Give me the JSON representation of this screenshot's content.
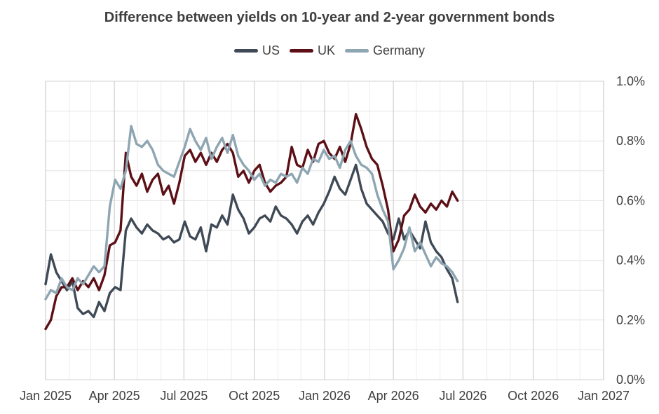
{
  "chart_data": {
    "type": "line",
    "title": "Difference between yields on 10-year and 2-year government bonds",
    "xlabel": "",
    "ylabel": "",
    "x_range": [
      "2025-01-01",
      "2027-01-01"
    ],
    "ylim": [
      0.0,
      1.0
    ],
    "x_ticks": [
      "Jan 2025",
      "Apr 2025",
      "Jul 2025",
      "Oct 2025",
      "Jan 2026",
      "Apr 2026",
      "Jul 2026",
      "Oct 2026",
      "Jan 2027"
    ],
    "y_ticks": [
      "0.0%",
      "0.2%",
      "0.4%",
      "0.6%",
      "0.8%",
      "1.0%"
    ],
    "y_axis_position": "right",
    "grid": true,
    "legend_position": "top-center",
    "series": [
      {
        "name": "US",
        "color": "#3f4a56",
        "points": [
          [
            "2025-01-01",
            0.32
          ],
          [
            "2025-01-08",
            0.42
          ],
          [
            "2025-01-15",
            0.36
          ],
          [
            "2025-01-22",
            0.33
          ],
          [
            "2025-01-29",
            0.3
          ],
          [
            "2025-02-05",
            0.33
          ],
          [
            "2025-02-12",
            0.24
          ],
          [
            "2025-02-19",
            0.22
          ],
          [
            "2025-02-26",
            0.23
          ],
          [
            "2025-03-05",
            0.21
          ],
          [
            "2025-03-12",
            0.26
          ],
          [
            "2025-03-19",
            0.23
          ],
          [
            "2025-03-26",
            0.29
          ],
          [
            "2025-04-02",
            0.31
          ],
          [
            "2025-04-09",
            0.3
          ],
          [
            "2025-04-16",
            0.5
          ],
          [
            "2025-04-23",
            0.54
          ],
          [
            "2025-04-30",
            0.51
          ],
          [
            "2025-05-07",
            0.49
          ],
          [
            "2025-05-14",
            0.52
          ],
          [
            "2025-05-21",
            0.5
          ],
          [
            "2025-05-28",
            0.49
          ],
          [
            "2025-06-04",
            0.47
          ],
          [
            "2025-06-11",
            0.48
          ],
          [
            "2025-06-18",
            0.46
          ],
          [
            "2025-06-25",
            0.47
          ],
          [
            "2025-07-02",
            0.53
          ],
          [
            "2025-07-09",
            0.48
          ],
          [
            "2025-07-16",
            0.47
          ],
          [
            "2025-07-23",
            0.51
          ],
          [
            "2025-07-30",
            0.43
          ],
          [
            "2025-08-06",
            0.52
          ],
          [
            "2025-08-13",
            0.51
          ],
          [
            "2025-08-20",
            0.55
          ],
          [
            "2025-08-27",
            0.52
          ],
          [
            "2025-09-03",
            0.62
          ],
          [
            "2025-09-10",
            0.57
          ],
          [
            "2025-09-17",
            0.54
          ],
          [
            "2025-09-24",
            0.49
          ],
          [
            "2025-10-01",
            0.51
          ],
          [
            "2025-10-08",
            0.54
          ],
          [
            "2025-10-15",
            0.55
          ],
          [
            "2025-10-22",
            0.53
          ],
          [
            "2025-10-29",
            0.58
          ],
          [
            "2025-11-05",
            0.55
          ],
          [
            "2025-11-12",
            0.54
          ],
          [
            "2025-11-19",
            0.52
          ],
          [
            "2025-11-26",
            0.49
          ],
          [
            "2025-12-03",
            0.53
          ],
          [
            "2025-12-10",
            0.55
          ],
          [
            "2025-12-17",
            0.52
          ],
          [
            "2025-12-24",
            0.56
          ],
          [
            "2025-12-31",
            0.59
          ],
          [
            "2026-01-07",
            0.63
          ],
          [
            "2026-01-14",
            0.68
          ],
          [
            "2026-01-21",
            0.64
          ],
          [
            "2026-01-28",
            0.62
          ],
          [
            "2026-02-04",
            0.67
          ],
          [
            "2026-02-11",
            0.72
          ],
          [
            "2026-02-18",
            0.64
          ],
          [
            "2026-02-25",
            0.59
          ],
          [
            "2026-03-04",
            0.57
          ],
          [
            "2026-03-11",
            0.55
          ],
          [
            "2026-03-18",
            0.53
          ],
          [
            "2026-03-25",
            0.49
          ],
          [
            "2026-04-01",
            0.47
          ],
          [
            "2026-04-08",
            0.54
          ],
          [
            "2026-04-15",
            0.47
          ],
          [
            "2026-04-22",
            0.5
          ],
          [
            "2026-04-29",
            0.47
          ],
          [
            "2026-05-06",
            0.44
          ],
          [
            "2026-05-13",
            0.53
          ],
          [
            "2026-05-20",
            0.46
          ],
          [
            "2026-05-27",
            0.43
          ],
          [
            "2026-06-03",
            0.41
          ],
          [
            "2026-06-10",
            0.37
          ],
          [
            "2026-06-17",
            0.34
          ],
          [
            "2026-06-24",
            0.26
          ]
        ]
      },
      {
        "name": "UK",
        "color": "#5c1016",
        "points": [
          [
            "2025-01-01",
            0.17
          ],
          [
            "2025-01-08",
            0.2
          ],
          [
            "2025-01-15",
            0.28
          ],
          [
            "2025-01-22",
            0.31
          ],
          [
            "2025-01-29",
            0.31
          ],
          [
            "2025-02-05",
            0.34
          ],
          [
            "2025-02-12",
            0.3
          ],
          [
            "2025-02-19",
            0.33
          ],
          [
            "2025-02-26",
            0.31
          ],
          [
            "2025-03-05",
            0.34
          ],
          [
            "2025-03-12",
            0.3
          ],
          [
            "2025-03-19",
            0.35
          ],
          [
            "2025-03-26",
            0.45
          ],
          [
            "2025-04-02",
            0.46
          ],
          [
            "2025-04-09",
            0.5
          ],
          [
            "2025-04-16",
            0.76
          ],
          [
            "2025-04-23",
            0.68
          ],
          [
            "2025-04-30",
            0.65
          ],
          [
            "2025-05-07",
            0.69
          ],
          [
            "2025-05-14",
            0.63
          ],
          [
            "2025-05-21",
            0.67
          ],
          [
            "2025-05-28",
            0.69
          ],
          [
            "2025-06-04",
            0.62
          ],
          [
            "2025-06-11",
            0.65
          ],
          [
            "2025-06-18",
            0.59
          ],
          [
            "2025-06-25",
            0.66
          ],
          [
            "2025-07-02",
            0.75
          ],
          [
            "2025-07-09",
            0.77
          ],
          [
            "2025-07-16",
            0.73
          ],
          [
            "2025-07-23",
            0.76
          ],
          [
            "2025-07-30",
            0.72
          ],
          [
            "2025-08-06",
            0.76
          ],
          [
            "2025-08-13",
            0.73
          ],
          [
            "2025-08-20",
            0.77
          ],
          [
            "2025-08-27",
            0.79
          ],
          [
            "2025-09-03",
            0.76
          ],
          [
            "2025-09-10",
            0.68
          ],
          [
            "2025-09-17",
            0.7
          ],
          [
            "2025-09-24",
            0.66
          ],
          [
            "2025-10-01",
            0.7
          ],
          [
            "2025-10-08",
            0.72
          ],
          [
            "2025-10-15",
            0.66
          ],
          [
            "2025-10-22",
            0.63
          ],
          [
            "2025-10-29",
            0.65
          ],
          [
            "2025-11-05",
            0.66
          ],
          [
            "2025-11-12",
            0.68
          ],
          [
            "2025-11-19",
            0.78
          ],
          [
            "2025-11-26",
            0.72
          ],
          [
            "2025-12-03",
            0.71
          ],
          [
            "2025-12-10",
            0.77
          ],
          [
            "2025-12-17",
            0.73
          ],
          [
            "2025-12-24",
            0.79
          ],
          [
            "2025-12-31",
            0.8
          ],
          [
            "2026-01-07",
            0.76
          ],
          [
            "2026-01-14",
            0.74
          ],
          [
            "2026-01-21",
            0.78
          ],
          [
            "2026-01-28",
            0.73
          ],
          [
            "2026-02-04",
            0.79
          ],
          [
            "2026-02-11",
            0.89
          ],
          [
            "2026-02-18",
            0.84
          ],
          [
            "2026-02-25",
            0.78
          ],
          [
            "2026-03-04",
            0.74
          ],
          [
            "2026-03-11",
            0.72
          ],
          [
            "2026-03-18",
            0.65
          ],
          [
            "2026-03-25",
            0.57
          ],
          [
            "2026-04-01",
            0.43
          ],
          [
            "2026-04-08",
            0.47
          ],
          [
            "2026-04-15",
            0.55
          ],
          [
            "2026-04-22",
            0.57
          ],
          [
            "2026-04-29",
            0.62
          ],
          [
            "2026-05-06",
            0.58
          ],
          [
            "2026-05-13",
            0.56
          ],
          [
            "2026-05-20",
            0.59
          ],
          [
            "2026-05-27",
            0.57
          ],
          [
            "2026-06-03",
            0.6
          ],
          [
            "2026-06-10",
            0.58
          ],
          [
            "2026-06-17",
            0.63
          ],
          [
            "2026-06-24",
            0.6
          ]
        ]
      },
      {
        "name": "Germany",
        "color": "#8ea5b2",
        "points": [
          [
            "2025-01-01",
            0.27
          ],
          [
            "2025-01-08",
            0.3
          ],
          [
            "2025-01-15",
            0.29
          ],
          [
            "2025-01-22",
            0.34
          ],
          [
            "2025-01-29",
            0.31
          ],
          [
            "2025-02-05",
            0.3
          ],
          [
            "2025-02-12",
            0.34
          ],
          [
            "2025-02-19",
            0.32
          ],
          [
            "2025-02-26",
            0.35
          ],
          [
            "2025-03-05",
            0.38
          ],
          [
            "2025-03-12",
            0.36
          ],
          [
            "2025-03-19",
            0.38
          ],
          [
            "2025-03-26",
            0.58
          ],
          [
            "2025-04-02",
            0.67
          ],
          [
            "2025-04-09",
            0.64
          ],
          [
            "2025-04-16",
            0.7
          ],
          [
            "2025-04-23",
            0.85
          ],
          [
            "2025-04-30",
            0.79
          ],
          [
            "2025-05-07",
            0.78
          ],
          [
            "2025-05-14",
            0.8
          ],
          [
            "2025-05-21",
            0.77
          ],
          [
            "2025-05-28",
            0.72
          ],
          [
            "2025-06-04",
            0.7
          ],
          [
            "2025-06-11",
            0.69
          ],
          [
            "2025-06-18",
            0.68
          ],
          [
            "2025-06-25",
            0.73
          ],
          [
            "2025-07-02",
            0.78
          ],
          [
            "2025-07-09",
            0.84
          ],
          [
            "2025-07-16",
            0.8
          ],
          [
            "2025-07-23",
            0.77
          ],
          [
            "2025-07-30",
            0.81
          ],
          [
            "2025-08-06",
            0.74
          ],
          [
            "2025-08-13",
            0.78
          ],
          [
            "2025-08-20",
            0.81
          ],
          [
            "2025-08-27",
            0.76
          ],
          [
            "2025-09-03",
            0.82
          ],
          [
            "2025-09-10",
            0.75
          ],
          [
            "2025-09-17",
            0.72
          ],
          [
            "2025-09-24",
            0.7
          ],
          [
            "2025-10-01",
            0.67
          ],
          [
            "2025-10-08",
            0.69
          ],
          [
            "2025-10-15",
            0.65
          ],
          [
            "2025-10-22",
            0.67
          ],
          [
            "2025-10-29",
            0.66
          ],
          [
            "2025-11-05",
            0.69
          ],
          [
            "2025-11-12",
            0.68
          ],
          [
            "2025-11-19",
            0.69
          ],
          [
            "2025-11-26",
            0.66
          ],
          [
            "2025-12-03",
            0.71
          ],
          [
            "2025-12-10",
            0.69
          ],
          [
            "2025-12-17",
            0.74
          ],
          [
            "2025-12-24",
            0.73
          ],
          [
            "2025-12-31",
            0.77
          ],
          [
            "2026-01-07",
            0.74
          ],
          [
            "2026-01-14",
            0.75
          ],
          [
            "2026-01-21",
            0.71
          ],
          [
            "2026-01-28",
            0.77
          ],
          [
            "2026-02-04",
            0.8
          ],
          [
            "2026-02-11",
            0.75
          ],
          [
            "2026-02-18",
            0.72
          ],
          [
            "2026-02-25",
            0.71
          ],
          [
            "2026-03-04",
            0.69
          ],
          [
            "2026-03-11",
            0.62
          ],
          [
            "2026-03-18",
            0.57
          ],
          [
            "2026-03-25",
            0.53
          ],
          [
            "2026-04-01",
            0.37
          ],
          [
            "2026-04-08",
            0.4
          ],
          [
            "2026-04-15",
            0.44
          ],
          [
            "2026-04-22",
            0.51
          ],
          [
            "2026-04-29",
            0.43
          ],
          [
            "2026-05-06",
            0.46
          ],
          [
            "2026-05-13",
            0.42
          ],
          [
            "2026-05-20",
            0.38
          ],
          [
            "2026-05-27",
            0.41
          ],
          [
            "2026-06-03",
            0.39
          ],
          [
            "2026-06-10",
            0.38
          ],
          [
            "2026-06-17",
            0.36
          ],
          [
            "2026-06-24",
            0.33
          ]
        ]
      }
    ]
  }
}
